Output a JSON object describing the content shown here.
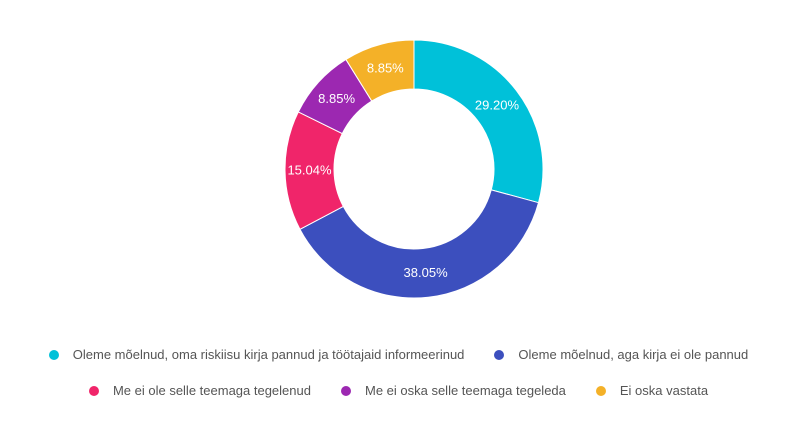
{
  "chart_data": {
    "type": "pie",
    "donut": true,
    "categories": [
      "Oleme mõelnud, oma riskiisu kirja pannud ja töötajaid informeerinud",
      "Oleme mõelnud, aga kirja ei ole pannud",
      "Me ei ole selle teemaga tegelenud",
      "Me ei oska selle teemaga tegeleda",
      "Ei oska vastata"
    ],
    "values": [
      29.2,
      38.05,
      15.04,
      8.85,
      8.85
    ],
    "labels": [
      "29.20%",
      "38.05%",
      "15.04%",
      "8.85%",
      "8.85%"
    ],
    "colors": [
      "#00c1d9",
      "#3c4fbe",
      "#f0256a",
      "#9c28b1",
      "#f4b128"
    ],
    "legend_position": "bottom"
  }
}
